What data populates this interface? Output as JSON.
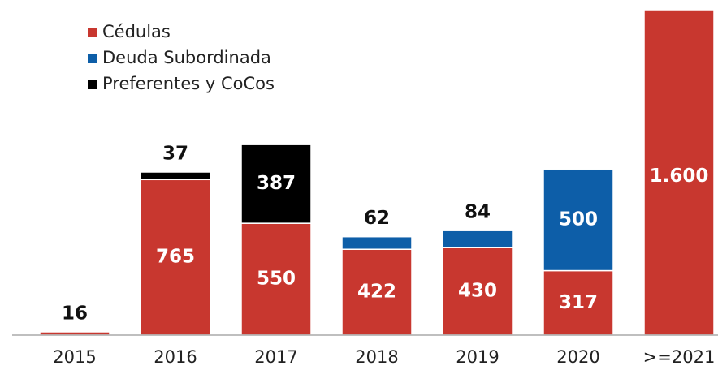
{
  "chart_data": {
    "type": "stacked_bar",
    "categories": [
      "2015",
      "2016",
      "2017",
      "2018",
      "2019",
      "2020",
      ">=2021"
    ],
    "series": [
      {
        "name": "Cédulas",
        "color": "#c8372f",
        "values": [
          16,
          765,
          550,
          422,
          430,
          317,
          1600
        ],
        "value_labels": [
          "16",
          "765",
          "550",
          "422",
          "430",
          "317",
          "1.600"
        ]
      },
      {
        "name": "Deuda Subordinada",
        "color": "#0d5ea8",
        "values": [
          null,
          null,
          null,
          62,
          84,
          500,
          null
        ]
      },
      {
        "name": "Preferentes y CoCos",
        "color": "#000000",
        "values": [
          null,
          37,
          387,
          null,
          null,
          null,
          null
        ]
      }
    ],
    "ylim": [
      0,
      1600
    ],
    "legend": "top-left"
  }
}
